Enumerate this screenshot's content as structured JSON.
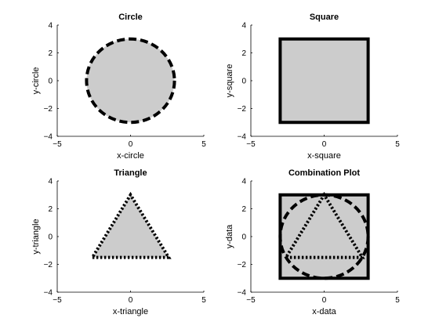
{
  "chart_data": [
    {
      "type": "area",
      "title": "Circle",
      "xlabel": "x-circle",
      "ylabel": "y-circle",
      "xlim": [
        -5,
        5
      ],
      "ylim": [
        -4,
        4
      ],
      "xticks": [
        -5,
        0,
        5
      ],
      "yticks": [
        -4,
        -2,
        0,
        2,
        4
      ],
      "grid": false,
      "fill_color": "#cccccc",
      "shapes": [
        {
          "kind": "circle",
          "center": [
            0,
            0
          ],
          "radius": 3,
          "edge_style": "dashed",
          "filled": true
        }
      ]
    },
    {
      "type": "area",
      "title": "Square",
      "xlabel": "x-square",
      "ylabel": "y-square",
      "xlim": [
        -5,
        5
      ],
      "ylim": [
        -4,
        4
      ],
      "xticks": [
        -5,
        0,
        5
      ],
      "yticks": [
        -4,
        -2,
        0,
        2,
        4
      ],
      "grid": false,
      "fill_color": "#cccccc",
      "shapes": [
        {
          "kind": "polygon",
          "points": [
            [
              -3,
              -3
            ],
            [
              3,
              -3
            ],
            [
              3,
              3
            ],
            [
              -3,
              3
            ]
          ],
          "edge_style": "solid",
          "filled": true
        }
      ]
    },
    {
      "type": "area",
      "title": "Triangle",
      "xlabel": "x-triangle",
      "ylabel": "y-triangle",
      "xlim": [
        -5,
        5
      ],
      "ylim": [
        -4,
        4
      ],
      "xticks": [
        -5,
        0,
        5
      ],
      "yticks": [
        -4,
        -2,
        0,
        2,
        4
      ],
      "grid": false,
      "fill_color": "#cccccc",
      "shapes": [
        {
          "kind": "polygon",
          "points": [
            [
              -2.6,
              -1.5
            ],
            [
              2.6,
              -1.5
            ],
            [
              0,
              3
            ]
          ],
          "edge_style": "dotted",
          "filled": true
        }
      ]
    },
    {
      "type": "area",
      "title": "Combination Plot",
      "xlabel": "x-data",
      "ylabel": "y-data",
      "xlim": [
        -5,
        5
      ],
      "ylim": [
        -4,
        4
      ],
      "xticks": [
        -5,
        0,
        5
      ],
      "yticks": [
        -4,
        -2,
        0,
        2,
        4
      ],
      "grid": false,
      "fill_color": "#cccccc",
      "shapes": [
        {
          "kind": "polygon",
          "points": [
            [
              -3,
              -3
            ],
            [
              3,
              -3
            ],
            [
              3,
              3
            ],
            [
              -3,
              3
            ]
          ],
          "edge_style": "solid",
          "filled": true
        },
        {
          "kind": "circle",
          "center": [
            0,
            0
          ],
          "radius": 3,
          "edge_style": "dashed",
          "filled": false
        },
        {
          "kind": "polygon",
          "points": [
            [
              -2.6,
              -1.5
            ],
            [
              2.6,
              -1.5
            ],
            [
              0,
              3
            ]
          ],
          "edge_style": "dotted",
          "filled": false
        }
      ]
    }
  ]
}
